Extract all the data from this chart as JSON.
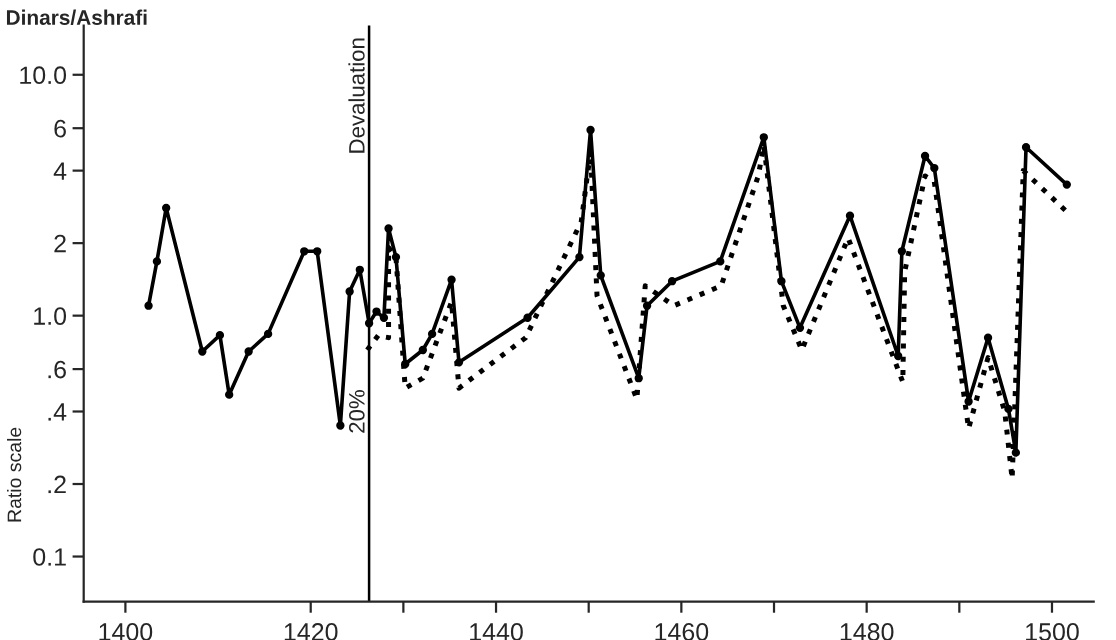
{
  "chart_data": {
    "type": "line",
    "title": "Dinars/Ashrafi",
    "ylabel": "Ratio scale",
    "log": "y",
    "grid": false,
    "legend": false,
    "xlim": [
      1395.5,
      1504.5
    ],
    "ylim": [
      0.065,
      16
    ],
    "xticks": [
      1400,
      1420,
      {
        "value": 1430,
        "label": null
      },
      1440,
      {
        "value": 1450,
        "label": null
      },
      1460,
      {
        "value": 1470,
        "label": null
      },
      1480,
      {
        "value": 1490,
        "label": null
      },
      1500
    ],
    "yticks": [
      {
        "value": 10,
        "label": "10.0"
      },
      6,
      4,
      2,
      {
        "value": 1,
        "label": "1.0"
      },
      {
        "value": 0.6,
        "label": ".6"
      },
      {
        "value": 0.4,
        "label": ".4"
      },
      {
        "value": 0.2,
        "label": ".2"
      },
      0.1
    ],
    "ref_lines": [
      {
        "axis": "x",
        "value": 1426.3,
        "label": "Devaluation",
        "color": "#000000",
        "line_style": "solid"
      }
    ],
    "annotations": [
      {
        "text": "20%",
        "x": 1426.3,
        "y": 0.4
      }
    ],
    "series": [
      {
        "color": "#000000",
        "marker": "circle",
        "line_style": "solid",
        "x": [
          1402.5,
          1403.4,
          1404.4,
          1408.3,
          1410.2,
          1411.2,
          1413.3,
          1415.4,
          1419.3,
          1420.7,
          1423.2,
          1424.2,
          1425.3,
          1426.3,
          1427.1,
          1427.9,
          1428.4,
          1429.2,
          1430.2,
          1432.1,
          1433.1,
          1435.2,
          1436,
          1443.4,
          1449,
          1450.2,
          1451.3,
          1455.4,
          1456.3,
          1459,
          1464.2,
          1468.9,
          1470.8,
          1472.8,
          1478.2,
          1483.4,
          1483.8,
          1486.3,
          1487.3,
          1491,
          1493.1,
          1495.3,
          1496.1,
          1497.2,
          1501.6
        ],
        "values": [
          1.1,
          1.68,
          2.8,
          0.71,
          0.83,
          0.47,
          0.71,
          0.84,
          1.85,
          1.85,
          0.35,
          1.26,
          1.55,
          0.93,
          1.04,
          0.98,
          2.3,
          1.75,
          0.63,
          0.72,
          0.84,
          1.41,
          0.64,
          0.98,
          1.75,
          5.9,
          1.47,
          0.55,
          1.1,
          1.39,
          1.68,
          5.5,
          1.39,
          0.89,
          2.6,
          0.68,
          1.85,
          4.6,
          4.1,
          0.44,
          0.81,
          0.41,
          0.27,
          5.0,
          3.5
        ]
      },
      {
        "color": "#000000",
        "marker": "none",
        "line_style": "dotted",
        "x": [
          1426.1,
          1427.3,
          1428.4,
          1428.4,
          1429.2,
          1430.2,
          1432.1,
          1435.2,
          1436,
          1443.2,
          1449.2,
          1450.2,
          1450.9,
          1455.2,
          1456.1,
          1459.2,
          1464.3,
          1468.3,
          1468.9,
          1471,
          1473,
          1478,
          1483.9,
          1484.1,
          1486.3,
          1487.3,
          1491,
          1493.1,
          1494.9,
          1495.7,
          1496.9,
          1501.6
        ],
        "values": [
          0.72,
          0.83,
          0.81,
          1.92,
          1.75,
          0.5,
          0.55,
          1.14,
          0.5,
          0.81,
          2.46,
          4.8,
          1.21,
          0.45,
          1.33,
          1.1,
          1.33,
          3.8,
          5.1,
          1.1,
          0.72,
          2.1,
          0.53,
          1.52,
          3.8,
          3.6,
          0.34,
          0.67,
          0.4,
          0.21,
          4.0,
          2.7
        ]
      }
    ]
  }
}
